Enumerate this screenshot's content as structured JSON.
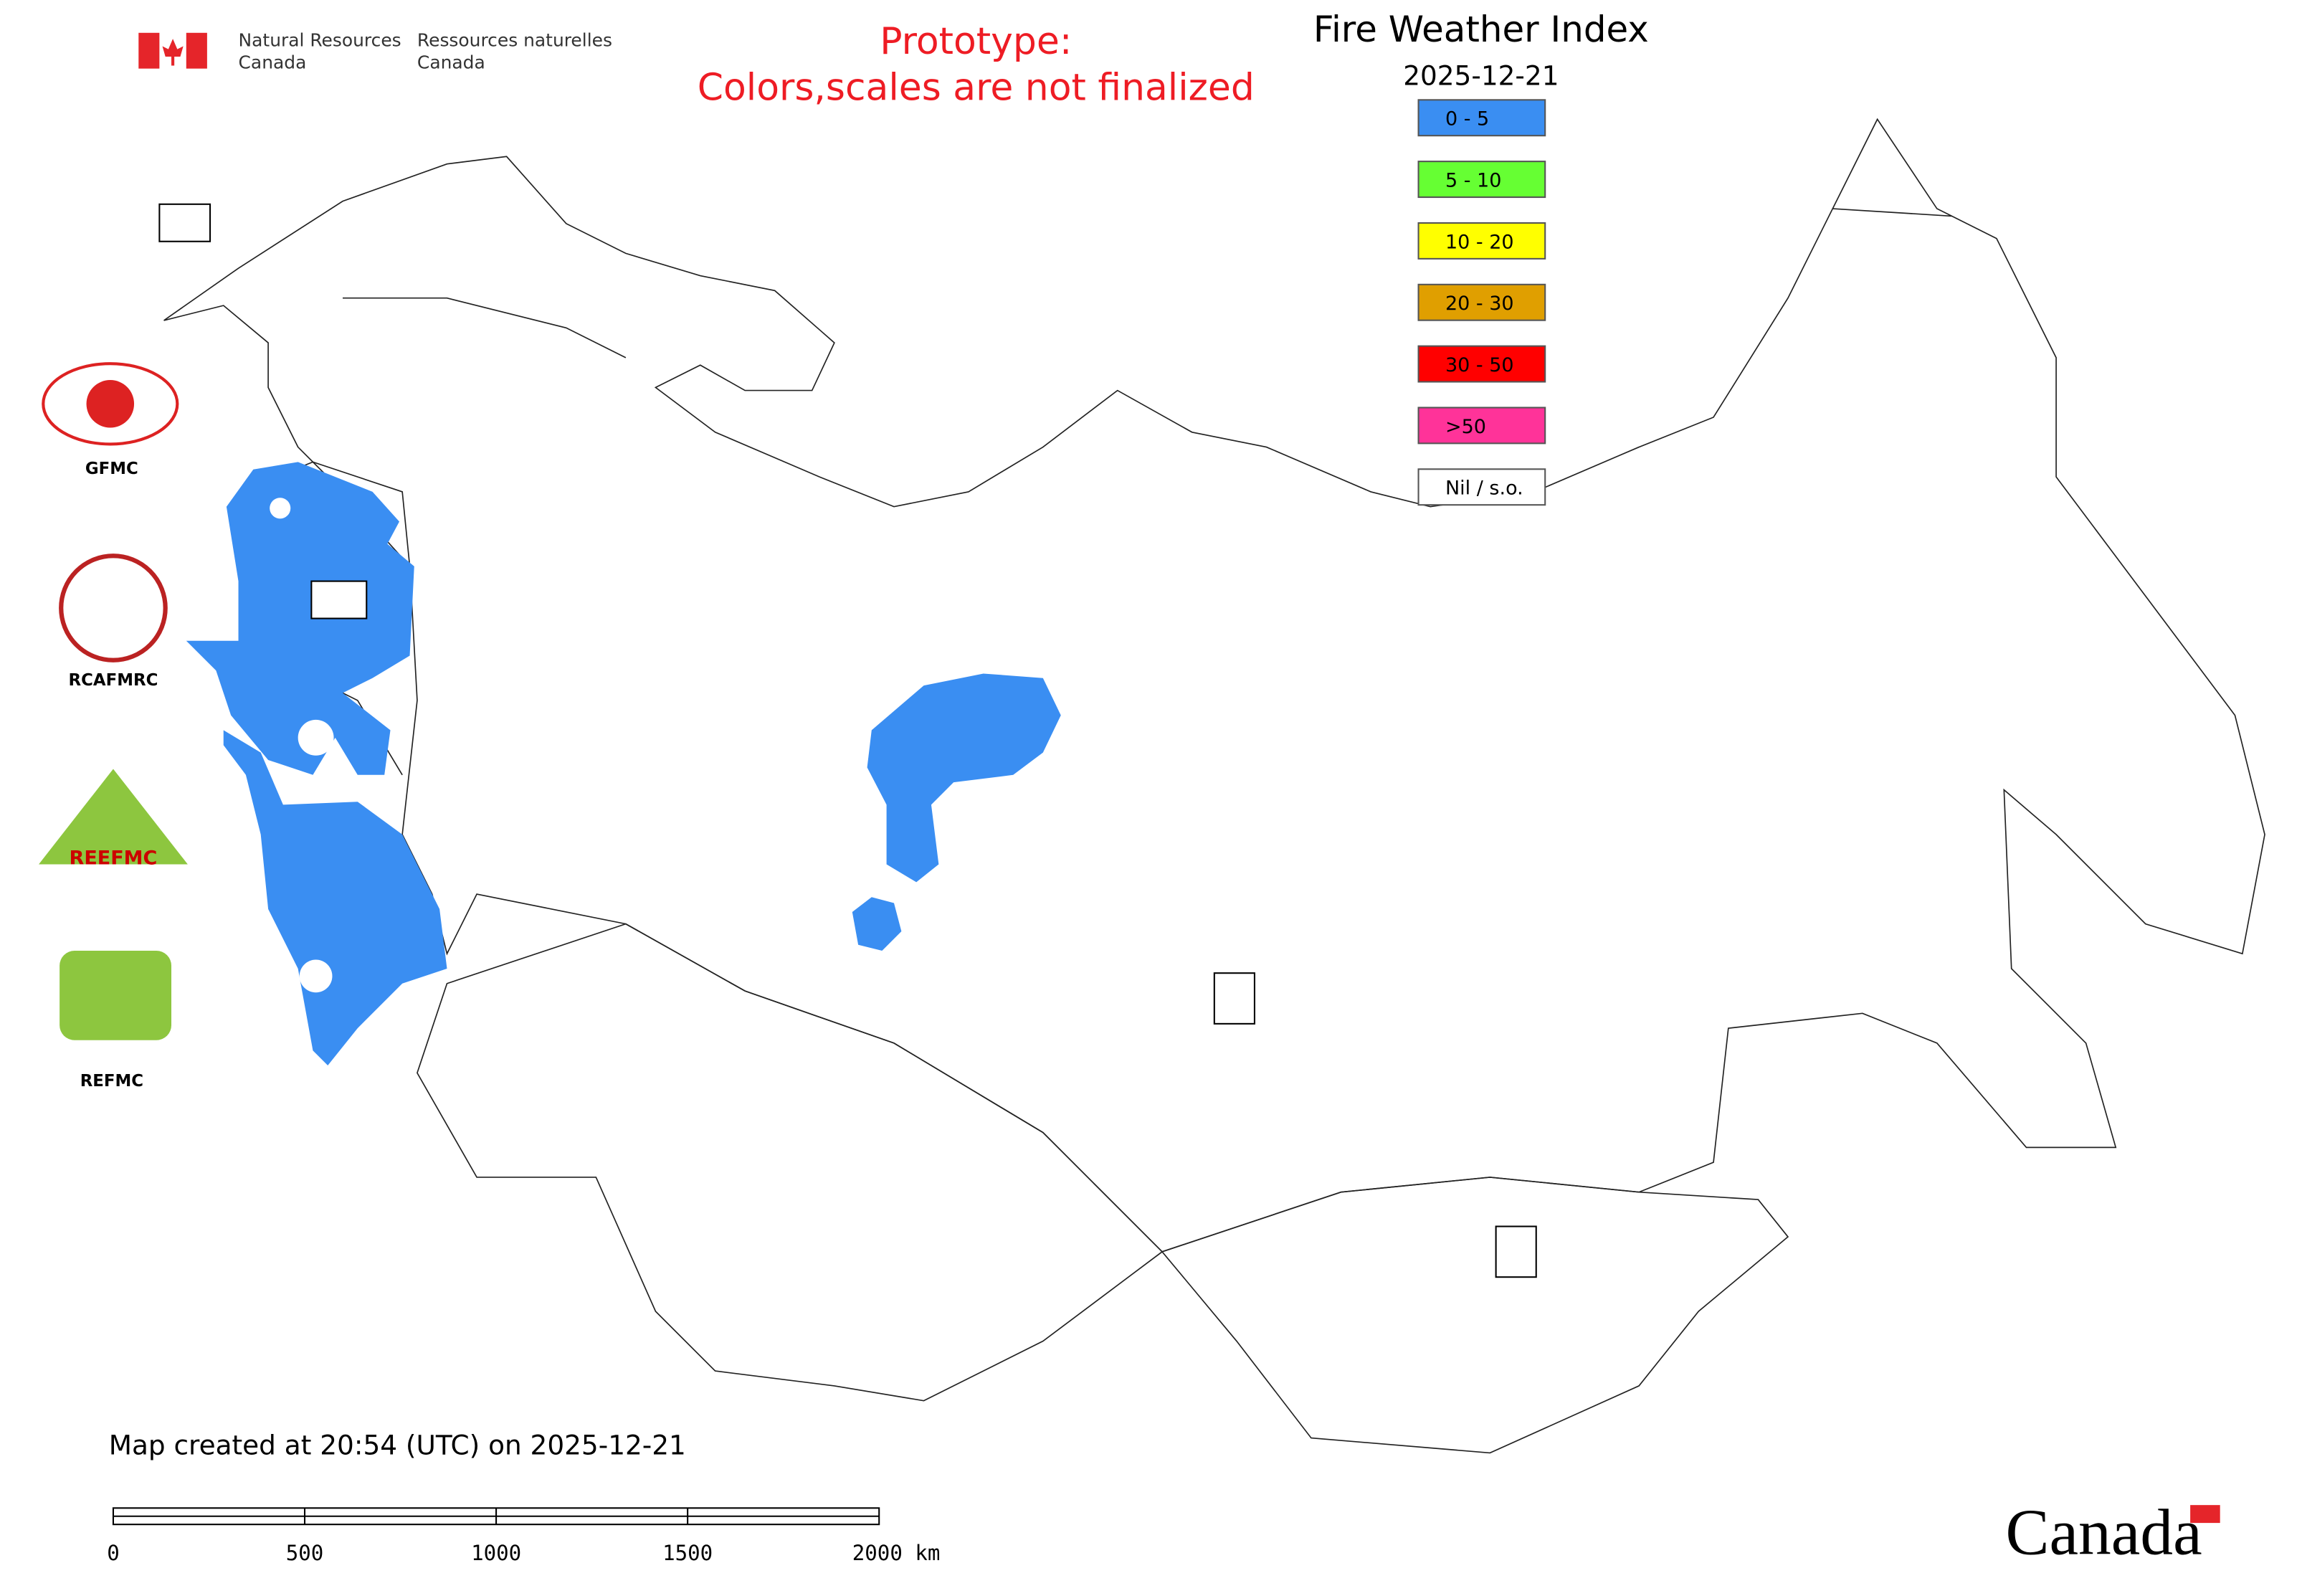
{
  "header": {
    "org_en": [
      "Natural Resources",
      "Canada"
    ],
    "org_fr": [
      "Ressources naturelles",
      "Canada"
    ],
    "notice": [
      "Prototype:",
      "Colors,scales are not finalized"
    ]
  },
  "map": {
    "title": "Fire Weather Index",
    "date": "2025-12-21",
    "legend": [
      {
        "label": "0 - 5",
        "color": "#3a8ef2"
      },
      {
        "label": "5 - 10",
        "color": "#66ff33"
      },
      {
        "label": "10 - 20",
        "color": "#ffff00"
      },
      {
        "label": "20 - 30",
        "color": "#e09f00"
      },
      {
        "label": "30 - 50",
        "color": "#ff0000"
      },
      {
        "label": ">50",
        "color": "#ff3399"
      },
      {
        "label": "Nil / s.o.",
        "color": "#ffffff"
      }
    ]
  },
  "logos": [
    "GFMC",
    "RCAFMRC",
    "REEFMC",
    "REFMC"
  ],
  "footer": {
    "created": "Map created at 20:54 (UTC) on 2025-12-21",
    "scale_labels": [
      "0",
      "500",
      "1000",
      "1500",
      "2000 km"
    ],
    "wordmark": "Canada"
  }
}
